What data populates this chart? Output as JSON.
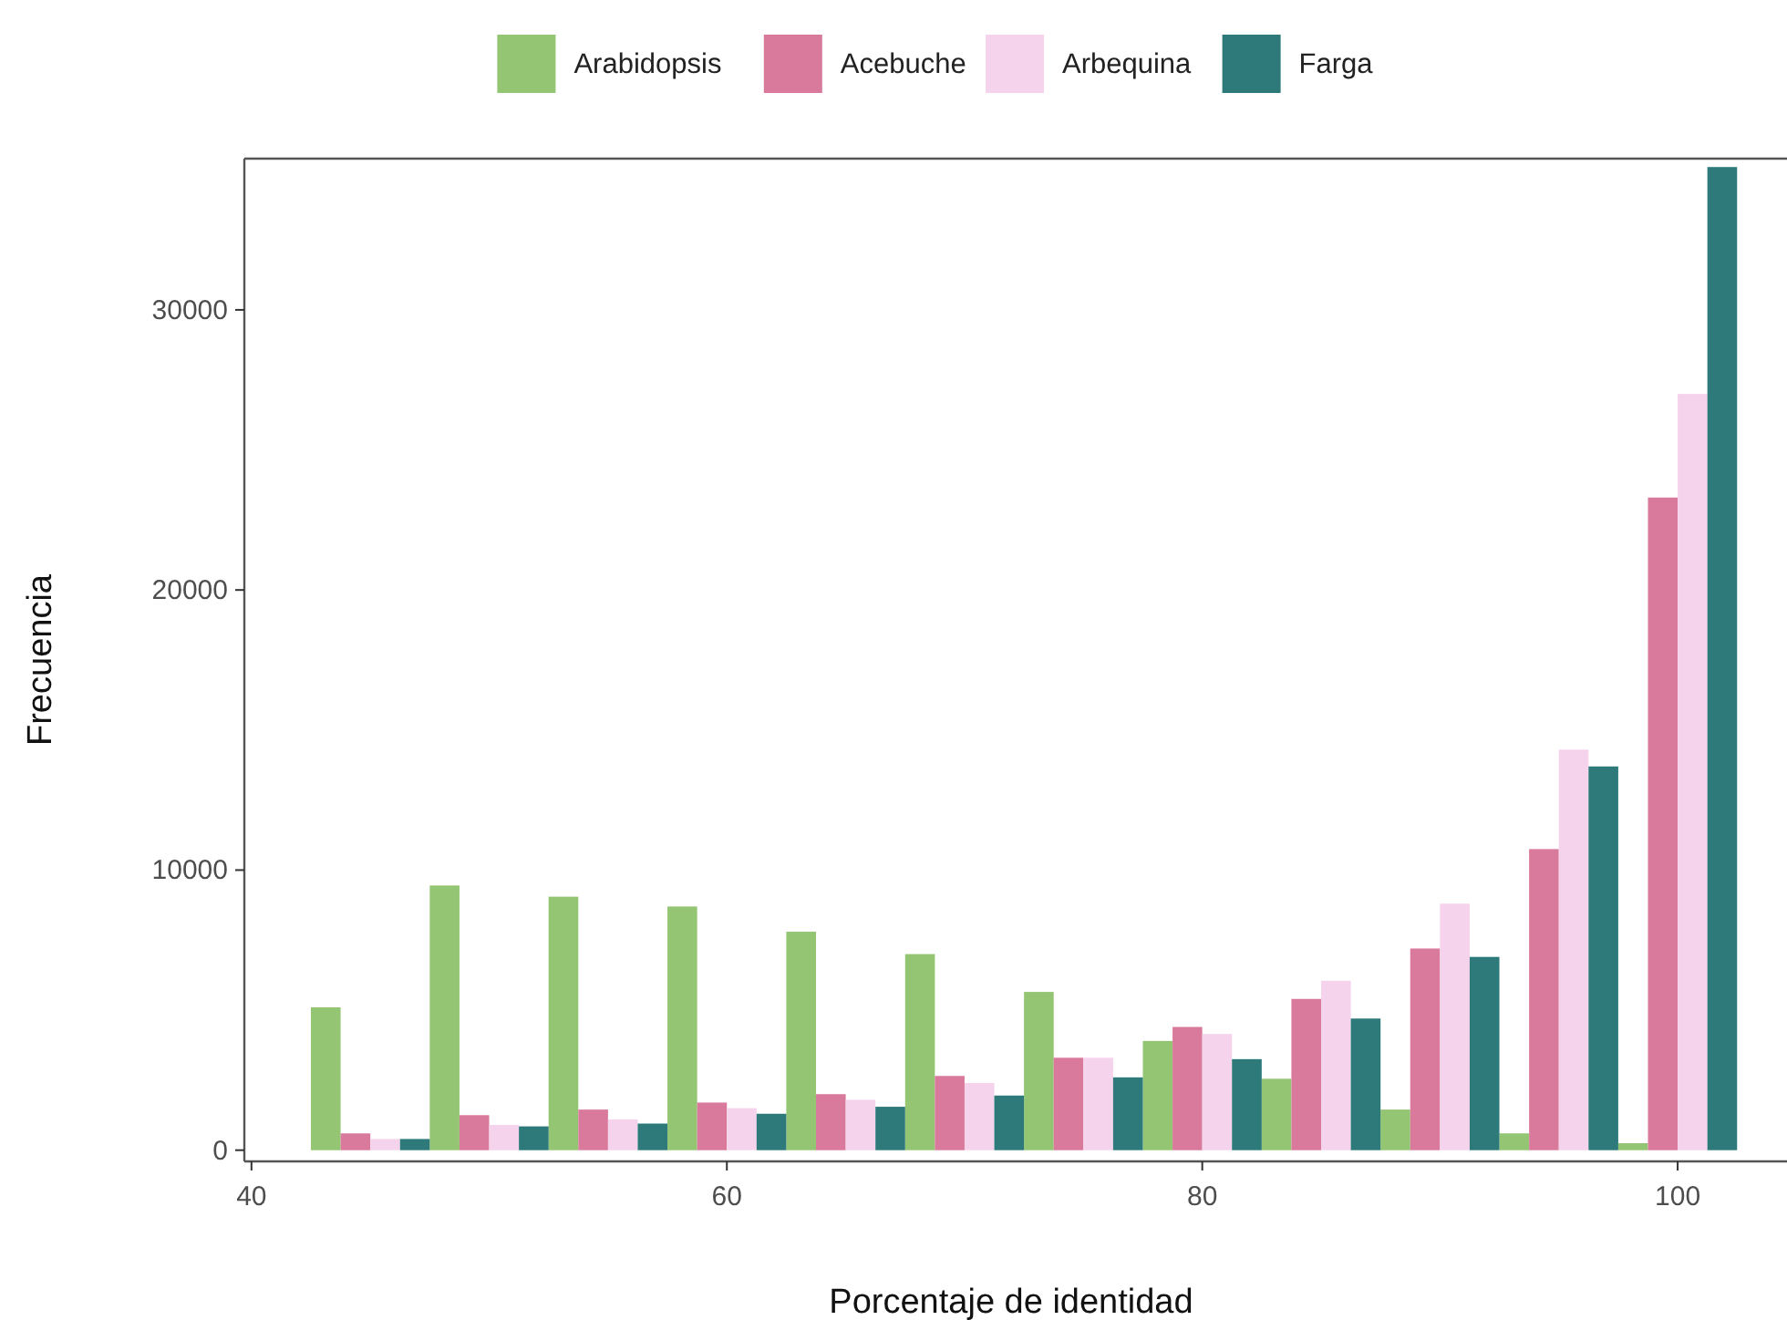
{
  "chart_data": {
    "type": "histogram",
    "xlabel": "Porcentaje de identidad",
    "ylabel": "Frecuencia",
    "bins": [
      42.5,
      47.5,
      52.5,
      57.5,
      62.5,
      67.5,
      72.5,
      77.5,
      82.5,
      87.5,
      92.5,
      97.5,
      102.5
    ],
    "series": [
      {
        "name": "Arabidopsis",
        "color": "#93c572",
        "values": [
          5100,
          9450,
          9050,
          8700,
          7800,
          7000,
          5650,
          3900,
          2550,
          1450,
          600,
          250
        ]
      },
      {
        "name": "Acebuche",
        "color": "#d9799b",
        "values": [
          600,
          1250,
          1450,
          1700,
          2000,
          2650,
          3300,
          4400,
          5400,
          7200,
          10750,
          23300
        ]
      },
      {
        "name": "Arbequina",
        "color": "#f5d3ec",
        "values": [
          400,
          900,
          1100,
          1500,
          1800,
          2400,
          3300,
          4150,
          6050,
          8800,
          14300,
          27000
        ]
      },
      {
        "name": "Farga",
        "color": "#2e7a7a",
        "values": [
          400,
          850,
          950,
          1300,
          1550,
          1950,
          2600,
          3250,
          4700,
          6900,
          13700,
          35100
        ]
      }
    ],
    "xlim": [
      39.7,
      104.6
    ],
    "xticks": [
      40,
      60,
      80,
      100
    ],
    "ylim": [
      -400,
      35400
    ],
    "yticks": [
      0,
      10000,
      20000,
      30000
    ],
    "legend": "top",
    "grid": false
  }
}
